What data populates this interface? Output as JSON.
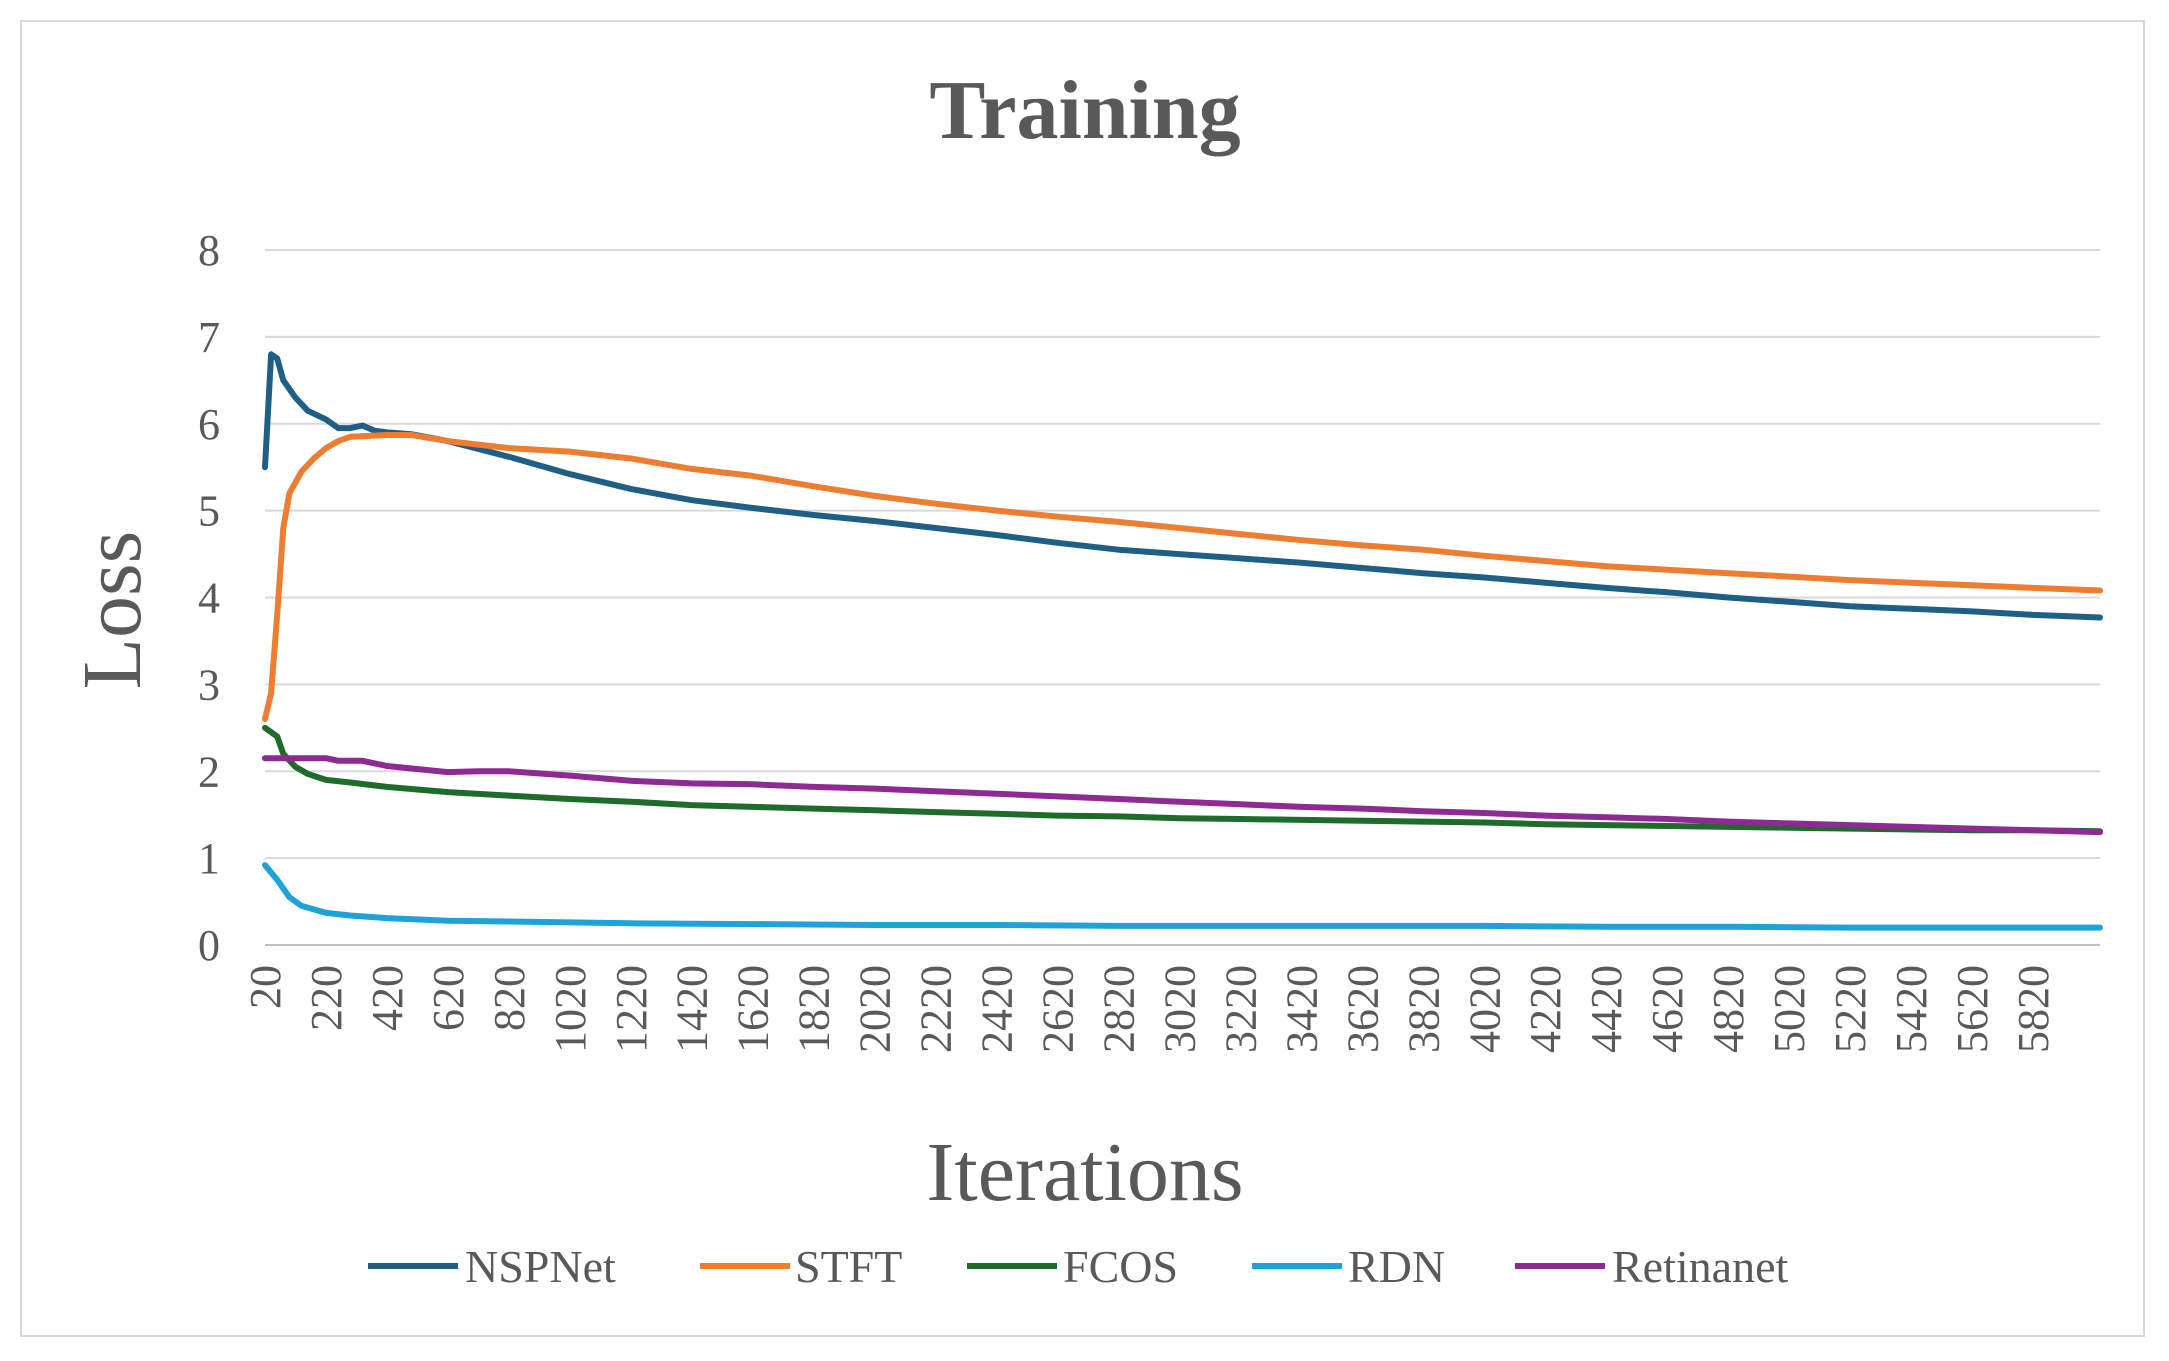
{
  "chart_data": {
    "type": "line",
    "title": "Training",
    "xlabel": "Iterations",
    "ylabel": "Loss",
    "ylim": [
      0,
      8
    ],
    "yticks": [
      "0",
      "1",
      "2",
      "3",
      "4",
      "5",
      "6",
      "7",
      "8"
    ],
    "xlim": [
      20,
      6040
    ],
    "xticks": [
      "20",
      "220",
      "420",
      "620",
      "820",
      "1020",
      "1220",
      "1420",
      "1620",
      "1820",
      "2020",
      "2220",
      "2420",
      "2620",
      "2820",
      "3020",
      "3220",
      "3420",
      "3620",
      "3820",
      "4020",
      "4220",
      "4420",
      "4620",
      "4820",
      "5020",
      "5220",
      "5420",
      "5620",
      "5820"
    ],
    "grid": true,
    "legend_position": "bottom",
    "series": [
      {
        "name": "NSPNet",
        "color": "#1f5f86",
        "points": [
          [
            20,
            5.5
          ],
          [
            40,
            6.8
          ],
          [
            60,
            6.75
          ],
          [
            80,
            6.5
          ],
          [
            120,
            6.3
          ],
          [
            160,
            6.15
          ],
          [
            220,
            6.05
          ],
          [
            260,
            5.95
          ],
          [
            300,
            5.95
          ],
          [
            340,
            5.98
          ],
          [
            380,
            5.92
          ],
          [
            420,
            5.9
          ],
          [
            500,
            5.88
          ],
          [
            620,
            5.8
          ],
          [
            820,
            5.62
          ],
          [
            1020,
            5.42
          ],
          [
            1220,
            5.25
          ],
          [
            1420,
            5.12
          ],
          [
            1620,
            5.03
          ],
          [
            1820,
            4.95
          ],
          [
            2020,
            4.88
          ],
          [
            2220,
            4.8
          ],
          [
            2420,
            4.72
          ],
          [
            2620,
            4.63
          ],
          [
            2820,
            4.55
          ],
          [
            3020,
            4.5
          ],
          [
            3220,
            4.45
          ],
          [
            3420,
            4.4
          ],
          [
            3620,
            4.34
          ],
          [
            3820,
            4.28
          ],
          [
            4020,
            4.23
          ],
          [
            4220,
            4.17
          ],
          [
            4420,
            4.11
          ],
          [
            4620,
            4.06
          ],
          [
            4820,
            4.0
          ],
          [
            5020,
            3.95
          ],
          [
            5220,
            3.9
          ],
          [
            5420,
            3.87
          ],
          [
            5620,
            3.84
          ],
          [
            5820,
            3.8
          ],
          [
            6040,
            3.77
          ]
        ]
      },
      {
        "name": "STFT",
        "color": "#ed7d31",
        "points": [
          [
            20,
            2.6
          ],
          [
            40,
            2.9
          ],
          [
            60,
            3.8
          ],
          [
            80,
            4.8
          ],
          [
            100,
            5.2
          ],
          [
            140,
            5.45
          ],
          [
            180,
            5.6
          ],
          [
            220,
            5.72
          ],
          [
            260,
            5.8
          ],
          [
            300,
            5.85
          ],
          [
            420,
            5.87
          ],
          [
            500,
            5.87
          ],
          [
            620,
            5.8
          ],
          [
            820,
            5.72
          ],
          [
            1020,
            5.68
          ],
          [
            1220,
            5.6
          ],
          [
            1420,
            5.48
          ],
          [
            1620,
            5.4
          ],
          [
            1820,
            5.28
          ],
          [
            2020,
            5.17
          ],
          [
            2220,
            5.08
          ],
          [
            2420,
            5.0
          ],
          [
            2620,
            4.93
          ],
          [
            2820,
            4.87
          ],
          [
            3020,
            4.8
          ],
          [
            3220,
            4.73
          ],
          [
            3420,
            4.66
          ],
          [
            3620,
            4.6
          ],
          [
            3820,
            4.55
          ],
          [
            4020,
            4.48
          ],
          [
            4220,
            4.42
          ],
          [
            4420,
            4.36
          ],
          [
            4620,
            4.32
          ],
          [
            4820,
            4.28
          ],
          [
            5020,
            4.24
          ],
          [
            5220,
            4.2
          ],
          [
            5420,
            4.17
          ],
          [
            5620,
            4.14
          ],
          [
            5820,
            4.11
          ],
          [
            6040,
            4.08
          ]
        ]
      },
      {
        "name": "FCOS",
        "color": "#1e6b2c",
        "points": [
          [
            20,
            2.5
          ],
          [
            60,
            2.4
          ],
          [
            80,
            2.2
          ],
          [
            120,
            2.05
          ],
          [
            160,
            1.97
          ],
          [
            220,
            1.9
          ],
          [
            300,
            1.87
          ],
          [
            420,
            1.82
          ],
          [
            620,
            1.76
          ],
          [
            820,
            1.72
          ],
          [
            1020,
            1.68
          ],
          [
            1220,
            1.65
          ],
          [
            1420,
            1.61
          ],
          [
            1620,
            1.59
          ],
          [
            1820,
            1.57
          ],
          [
            2020,
            1.55
          ],
          [
            2220,
            1.53
          ],
          [
            2420,
            1.51
          ],
          [
            2620,
            1.49
          ],
          [
            2820,
            1.48
          ],
          [
            3020,
            1.46
          ],
          [
            3220,
            1.45
          ],
          [
            3420,
            1.44
          ],
          [
            3620,
            1.43
          ],
          [
            3820,
            1.42
          ],
          [
            4020,
            1.41
          ],
          [
            4220,
            1.39
          ],
          [
            4420,
            1.38
          ],
          [
            4620,
            1.37
          ],
          [
            4820,
            1.36
          ],
          [
            5020,
            1.35
          ],
          [
            5220,
            1.34
          ],
          [
            5420,
            1.33
          ],
          [
            5620,
            1.32
          ],
          [
            5820,
            1.32
          ],
          [
            6040,
            1.31
          ]
        ]
      },
      {
        "name": "RDN",
        "color": "#1fa2d8",
        "points": [
          [
            20,
            0.92
          ],
          [
            60,
            0.75
          ],
          [
            100,
            0.55
          ],
          [
            140,
            0.45
          ],
          [
            220,
            0.37
          ],
          [
            300,
            0.34
          ],
          [
            420,
            0.31
          ],
          [
            620,
            0.28
          ],
          [
            820,
            0.27
          ],
          [
            1020,
            0.26
          ],
          [
            1220,
            0.25
          ],
          [
            1620,
            0.24
          ],
          [
            2020,
            0.23
          ],
          [
            2420,
            0.23
          ],
          [
            2820,
            0.22
          ],
          [
            3220,
            0.22
          ],
          [
            3620,
            0.22
          ],
          [
            4020,
            0.22
          ],
          [
            4420,
            0.21
          ],
          [
            4820,
            0.21
          ],
          [
            5220,
            0.2
          ],
          [
            5620,
            0.2
          ],
          [
            6040,
            0.2
          ]
        ]
      },
      {
        "name": "Retinanet",
        "color": "#8e2a94",
        "points": [
          [
            20,
            2.15
          ],
          [
            220,
            2.15
          ],
          [
            260,
            2.12
          ],
          [
            340,
            2.12
          ],
          [
            420,
            2.06
          ],
          [
            620,
            1.99
          ],
          [
            720,
            2.0
          ],
          [
            820,
            2.0
          ],
          [
            1020,
            1.95
          ],
          [
            1220,
            1.89
          ],
          [
            1420,
            1.86
          ],
          [
            1620,
            1.85
          ],
          [
            1820,
            1.82
          ],
          [
            2020,
            1.8
          ],
          [
            2220,
            1.77
          ],
          [
            2420,
            1.74
          ],
          [
            2620,
            1.71
          ],
          [
            2820,
            1.68
          ],
          [
            3020,
            1.65
          ],
          [
            3220,
            1.62
          ],
          [
            3420,
            1.59
          ],
          [
            3620,
            1.57
          ],
          [
            3820,
            1.54
          ],
          [
            4020,
            1.52
          ],
          [
            4220,
            1.49
          ],
          [
            4420,
            1.47
          ],
          [
            4620,
            1.45
          ],
          [
            4820,
            1.42
          ],
          [
            5020,
            1.4
          ],
          [
            5220,
            1.38
          ],
          [
            5420,
            1.36
          ],
          [
            5620,
            1.34
          ],
          [
            5820,
            1.32
          ],
          [
            6040,
            1.3
          ]
        ]
      }
    ]
  }
}
